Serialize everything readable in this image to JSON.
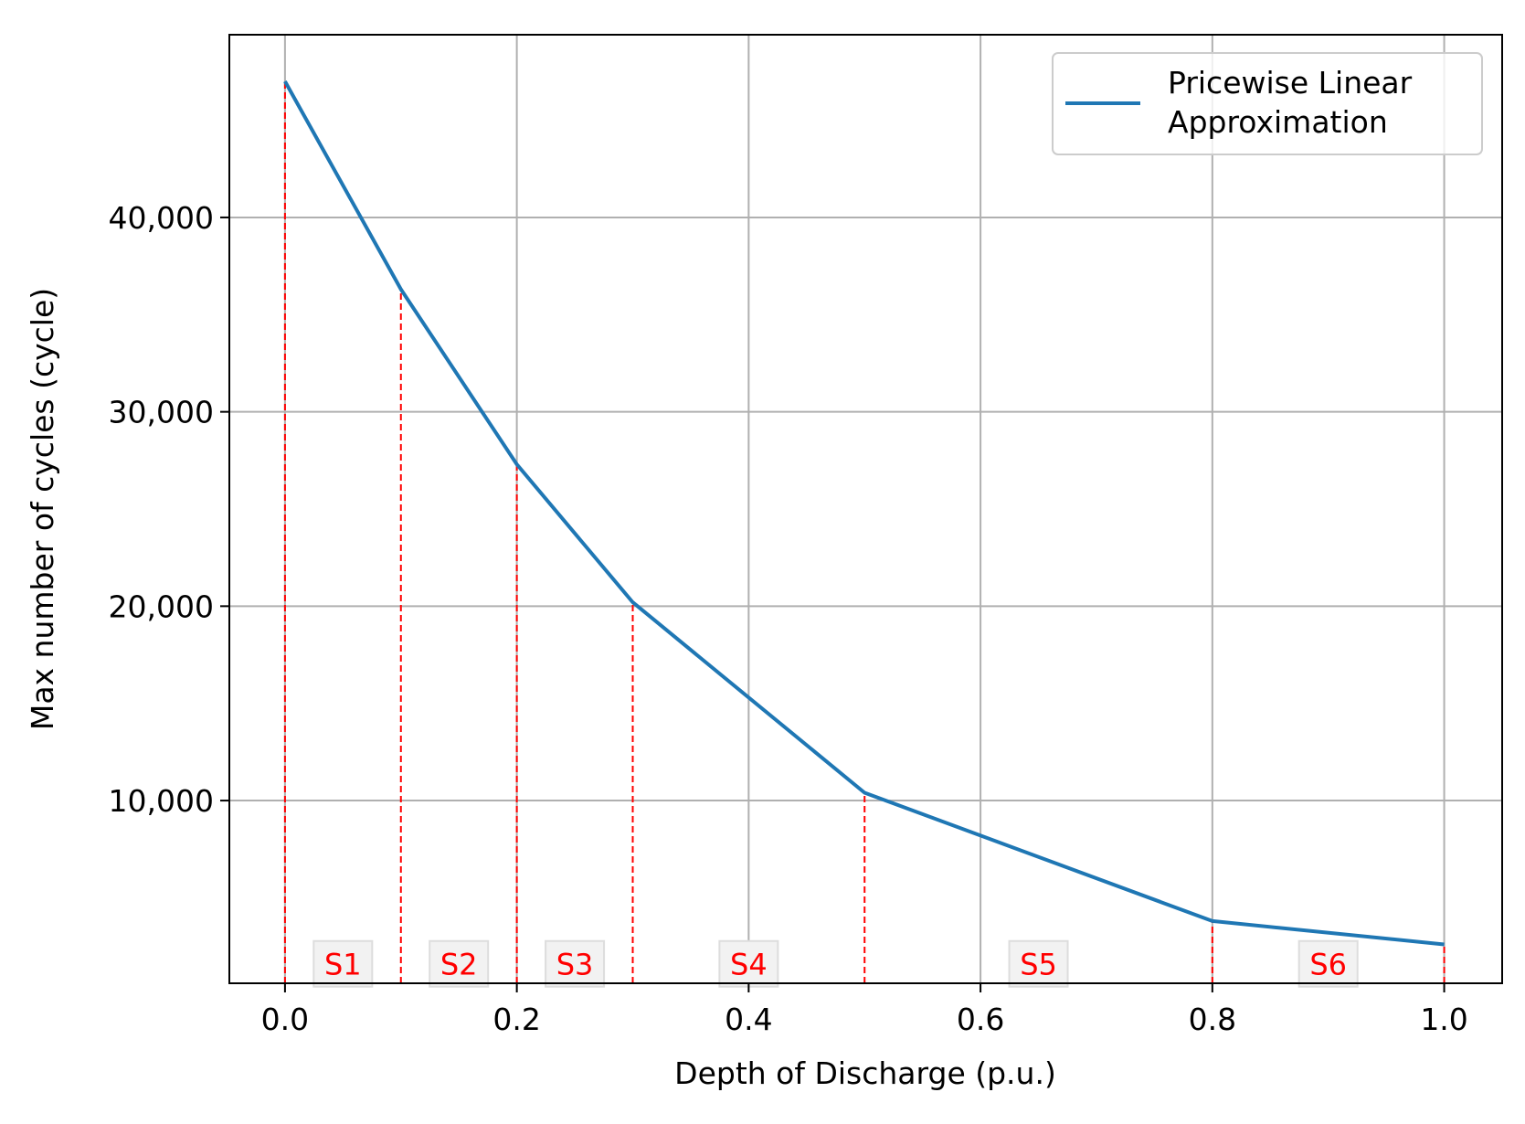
{
  "chart_data": {
    "type": "line",
    "title": "",
    "xlabel": "Depth of Discharge (p.u.)",
    "ylabel": "Max number of cycles (cycle)",
    "xlim": [
      -0.048,
      1.05
    ],
    "ylim": [
      600,
      49400
    ],
    "grid": true,
    "xticks": [
      0.0,
      0.2,
      0.4,
      0.6,
      0.8,
      1.0
    ],
    "xtick_labels": [
      "0.0",
      "0.2",
      "0.4",
      "0.6",
      "0.8",
      "1.0"
    ],
    "yticks": [
      10000,
      20000,
      30000,
      40000
    ],
    "ytick_labels": [
      "10,000",
      "20,000",
      "30,000",
      "40,000"
    ],
    "series": [
      {
        "name": "Pricewise Linear Approximation",
        "legend_lines": [
          "Pricewise Linear",
          "Approximation"
        ],
        "color": "#1f77b4",
        "x": [
          0.0,
          0.1,
          0.2,
          0.3,
          0.5,
          0.8,
          1.0
        ],
        "y": [
          47000,
          36300,
          27300,
          20200,
          10400,
          3800,
          2600
        ]
      }
    ],
    "breakpoints": {
      "color": "#ff0000",
      "x": [
        0.0,
        0.1,
        0.2,
        0.3,
        0.5,
        0.8,
        1.0
      ]
    },
    "segments": {
      "color": "#ff0000",
      "labels": [
        {
          "label": "S1",
          "x": 0.05,
          "y": 1600
        },
        {
          "label": "S2",
          "x": 0.15,
          "y": 1600
        },
        {
          "label": "S3",
          "x": 0.25,
          "y": 1600
        },
        {
          "label": "S4",
          "x": 0.4,
          "y": 1600
        },
        {
          "label": "S5",
          "x": 0.65,
          "y": 1600
        },
        {
          "label": "S6",
          "x": 0.9,
          "y": 1600
        }
      ]
    },
    "legend": {
      "position": "top-right"
    }
  }
}
